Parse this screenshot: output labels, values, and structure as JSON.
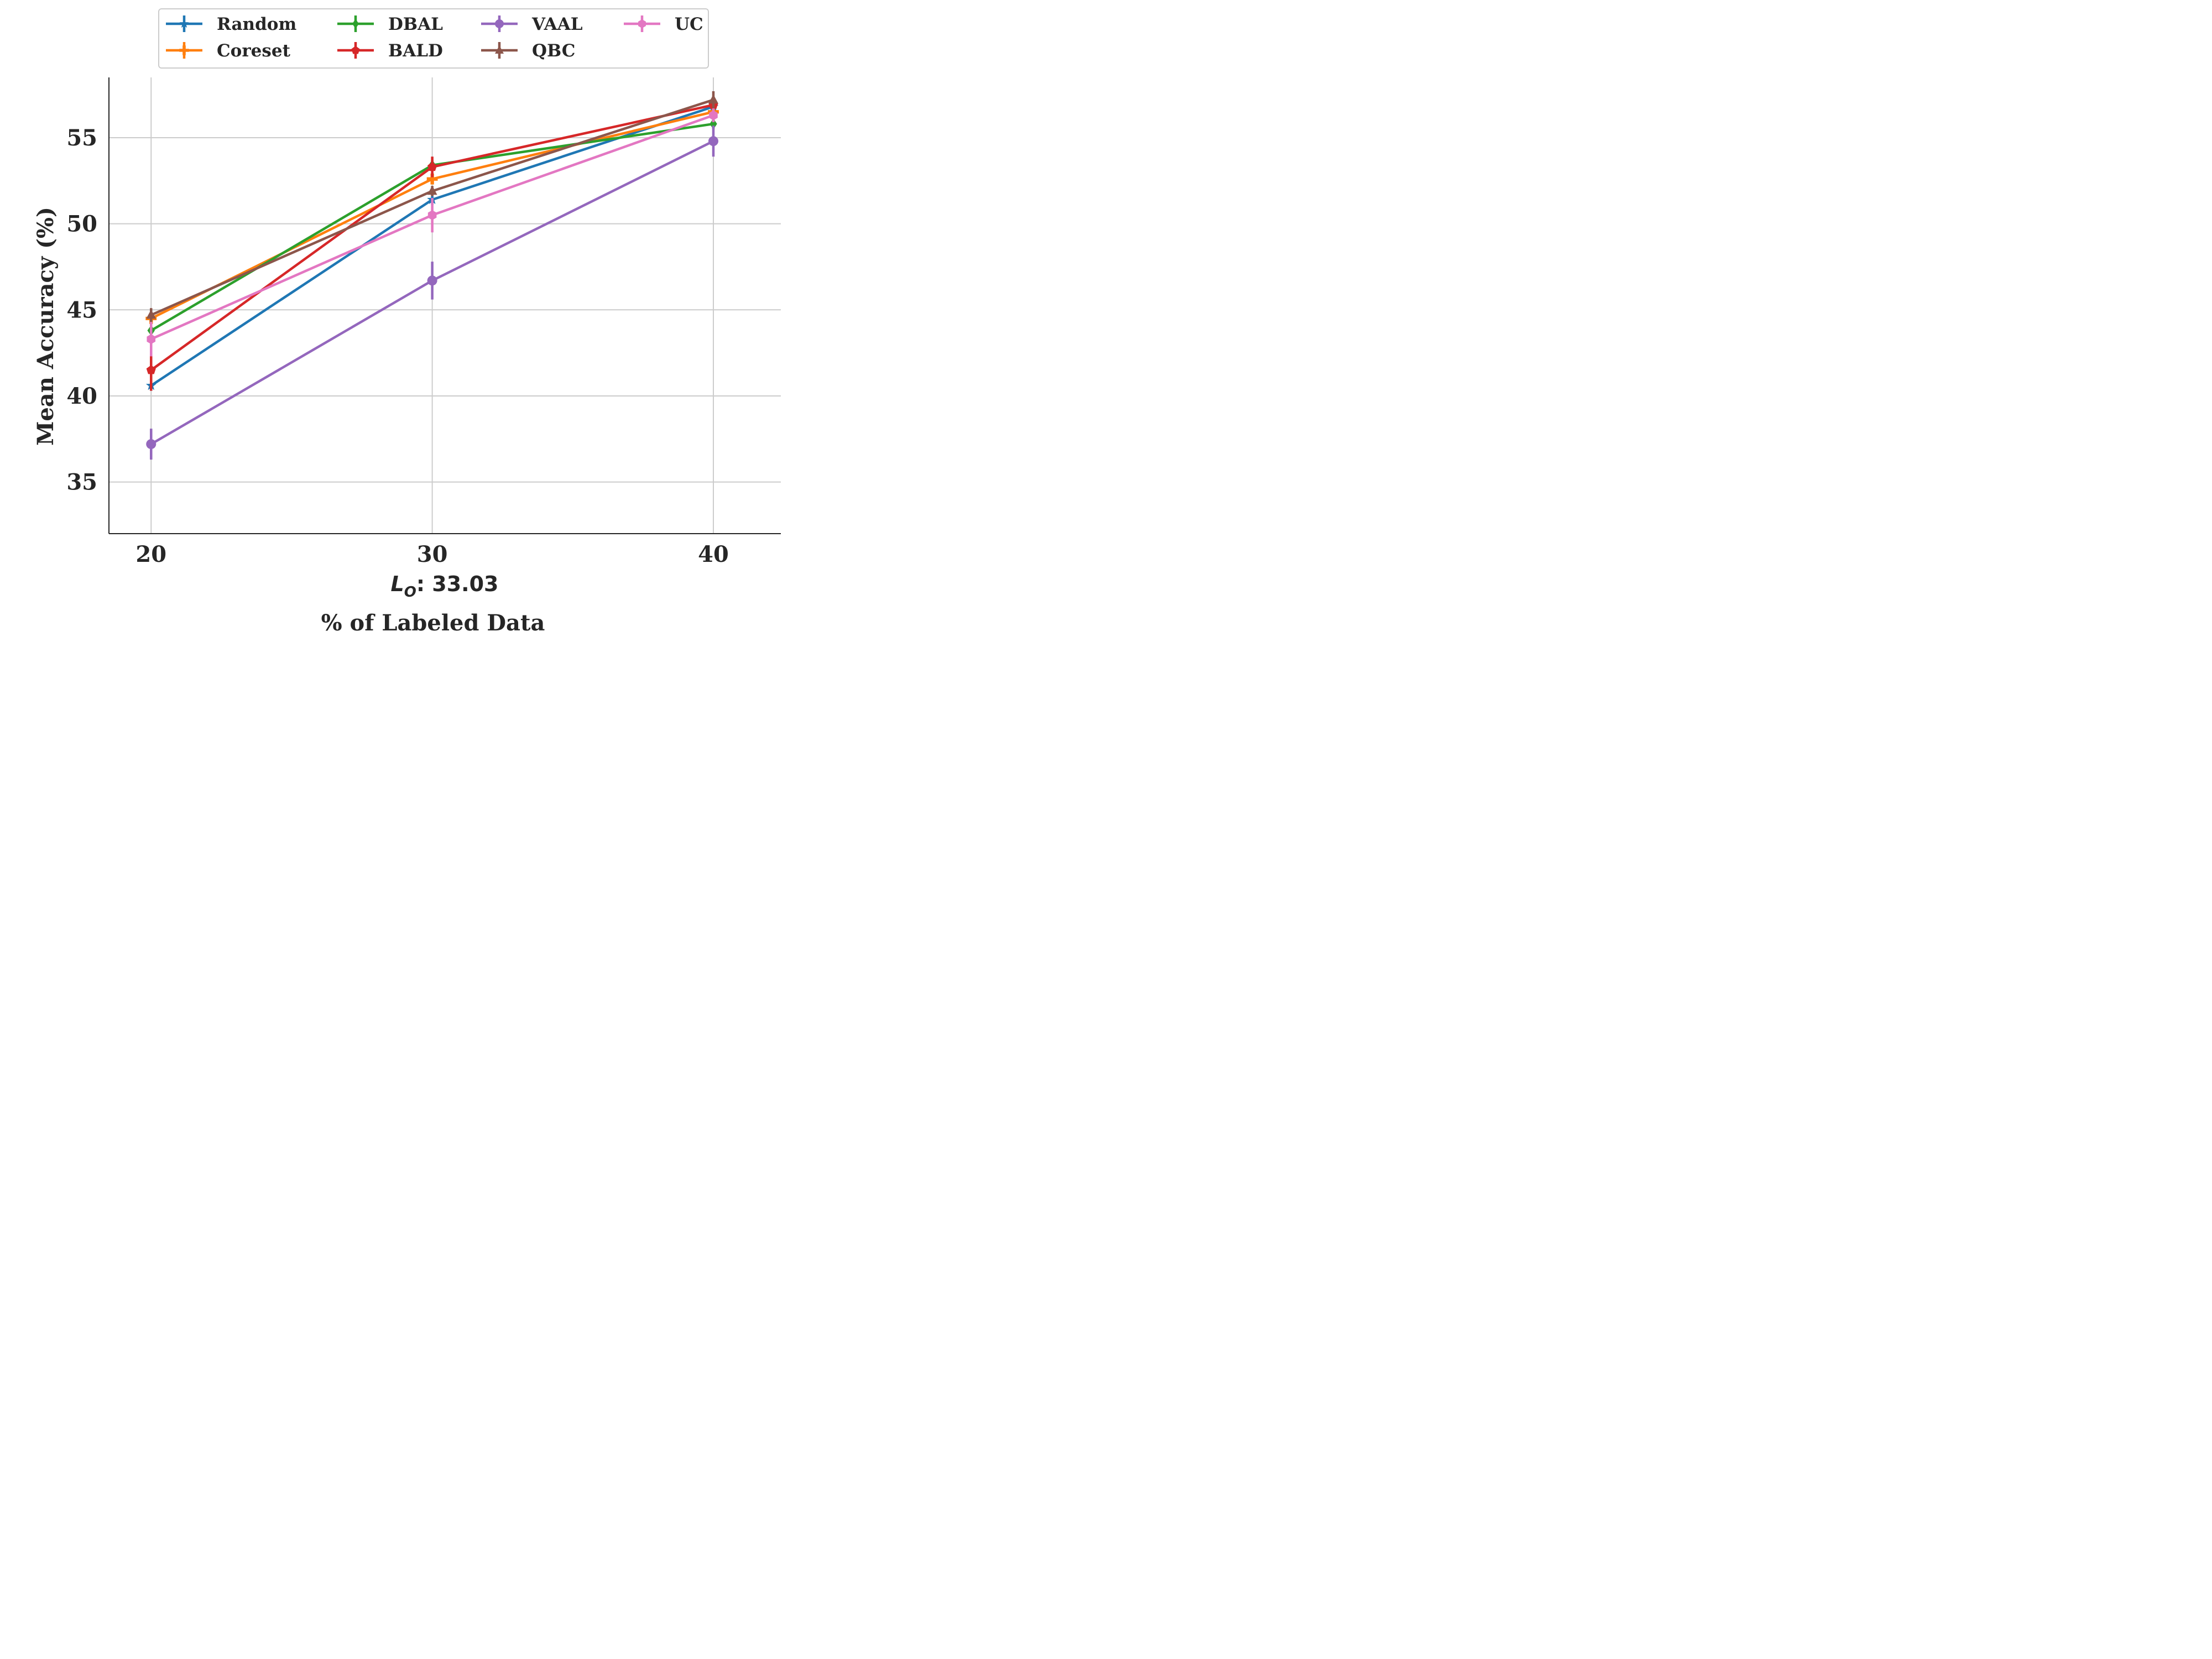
{
  "chart_data": {
    "type": "line",
    "x": [
      20,
      30,
      40
    ],
    "xticks": [
      "20",
      "30",
      "40"
    ],
    "yticks": [
      "35",
      "40",
      "45",
      "50",
      "55"
    ],
    "xlabel": "% of Labeled Data",
    "sublabel": "L_O: 33.03",
    "sublabel_base": "L",
    "sublabel_sub": "O",
    "sublabel_rest": ": 33.03",
    "ylabel": "Mean Accuracy (%)",
    "ylim": [
      32,
      58.5
    ],
    "grid": true,
    "legend_position": "top-center",
    "series": [
      {
        "name": "Random",
        "color": "#1f77b4",
        "marker": "star",
        "values": [
          40.6,
          51.4,
          56.8
        ],
        "errors": [
          0.3,
          0.3,
          0.2
        ]
      },
      {
        "name": "Coreset",
        "color": "#ff7f0e",
        "marker": "plus",
        "values": [
          44.5,
          52.6,
          56.5
        ],
        "errors": [
          0.2,
          0.3,
          0.2
        ]
      },
      {
        "name": "DBAL",
        "color": "#2ca02c",
        "marker": "diamond",
        "values": [
          43.8,
          53.4,
          55.8
        ],
        "errors": [
          0.3,
          0.3,
          0.3
        ]
      },
      {
        "name": "BALD",
        "color": "#d62728",
        "marker": "pentagon",
        "values": [
          41.5,
          53.3,
          56.9
        ],
        "errors": [
          1.2,
          0.6,
          0.3
        ]
      },
      {
        "name": "VAAL",
        "color": "#9467bd",
        "marker": "circle",
        "values": [
          37.2,
          46.7,
          54.8
        ],
        "errors": [
          0.9,
          1.1,
          0.9
        ]
      },
      {
        "name": "QBC",
        "color": "#8c564b",
        "marker": "triangle",
        "values": [
          44.7,
          51.9,
          57.2
        ],
        "errors": [
          0.4,
          0.3,
          0.5
        ]
      },
      {
        "name": "UC",
        "color": "#e377c2",
        "marker": "hexagon",
        "values": [
          43.3,
          50.5,
          56.3
        ],
        "errors": [
          1.0,
          1.0,
          0.4
        ]
      }
    ]
  }
}
